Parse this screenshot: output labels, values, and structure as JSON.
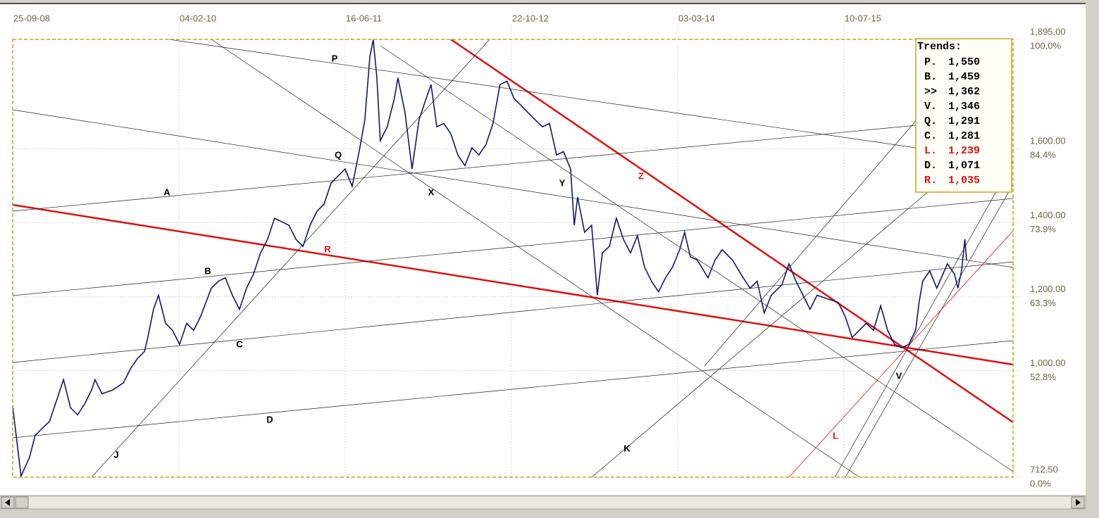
{
  "chart_data": {
    "type": "line",
    "xlim": [
      0,
      2991
    ],
    "xticks": [
      {
        "value": 0,
        "label": "25-09-08"
      },
      {
        "value": 497,
        "label": "04-02-10"
      },
      {
        "value": 994,
        "label": "16-06-11"
      },
      {
        "value": 1491,
        "label": "22-10-12"
      },
      {
        "value": 1988,
        "label": "03-03-14"
      },
      {
        "value": 2485,
        "label": "10-07-15"
      }
    ],
    "ylim": [
      712.5,
      1895
    ],
    "yticks": [
      {
        "value": 1895,
        "label": "1,895.00"
      },
      {
        "value": 1600,
        "label": "1,600.00"
      },
      {
        "value": 1400,
        "label": "1,400.00"
      },
      {
        "value": 1200,
        "label": "1,200.00"
      },
      {
        "value": 1000,
        "label": "1,000.00"
      },
      {
        "value": 712.5,
        "label": "712.50"
      }
    ],
    "ytick_percents": [
      "100.0%",
      "84.4%",
      "73.9%",
      "63.3%",
      "52.8%",
      "0.0%"
    ],
    "grid": true,
    "x": [
      0,
      25,
      51,
      67,
      88,
      110,
      131,
      152,
      173,
      194,
      215,
      236,
      246,
      267,
      299,
      331,
      352,
      373,
      394,
      404,
      421,
      436,
      457,
      478,
      499,
      520,
      541,
      562,
      594,
      615,
      636,
      657,
      678,
      699,
      720,
      741,
      762,
      783,
      804,
      826,
      847,
      868,
      889,
      910,
      931,
      952,
      973,
      994,
      1015,
      1036,
      1053,
      1068,
      1078,
      1089,
      1099,
      1120,
      1141,
      1152,
      1173,
      1194,
      1215,
      1236,
      1251,
      1268,
      1289,
      1310,
      1331,
      1352,
      1373,
      1394,
      1415,
      1436,
      1457,
      1478,
      1499,
      1521,
      1552,
      1584,
      1605,
      1626,
      1647,
      1668,
      1679,
      1689,
      1710,
      1731,
      1748,
      1763,
      1784,
      1805,
      1826,
      1847,
      1868,
      1889,
      1910,
      1931,
      1952,
      1973,
      1994,
      2009,
      2026,
      2047,
      2079,
      2100,
      2121,
      2152,
      2184,
      2205,
      2226,
      2247,
      2268,
      2300,
      2321,
      2342,
      2363,
      2384,
      2405,
      2437,
      2468,
      2489,
      2510,
      2531,
      2552,
      2574,
      2595,
      2616,
      2637,
      2658,
      2679,
      2700,
      2710,
      2721,
      2742,
      2763,
      2795,
      2816,
      2826,
      2837,
      2847,
      2852
    ],
    "series": [
      {
        "color": "#14146e",
        "values": [
          904,
          715,
          768,
          825,
          844,
          863,
          919,
          976,
          900,
          881,
          910,
          948,
          976,
          938,
          948,
          967,
          1005,
          1033,
          1052,
          1090,
          1166,
          1204,
          1128,
          1109,
          1071,
          1128,
          1109,
          1147,
          1223,
          1242,
          1251,
          1204,
          1166,
          1223,
          1261,
          1318,
          1355,
          1412,
          1403,
          1393,
          1355,
          1336,
          1393,
          1431,
          1450,
          1507,
          1526,
          1545,
          1498,
          1592,
          1678,
          1848,
          1894,
          1791,
          1621,
          1659,
          1735,
          1791,
          1697,
          1545,
          1678,
          1735,
          1773,
          1659,
          1668,
          1640,
          1583,
          1554,
          1602,
          1583,
          1611,
          1668,
          1773,
          1782,
          1735,
          1716,
          1687,
          1659,
          1668,
          1583,
          1592,
          1545,
          1393,
          1469,
          1374,
          1393,
          1204,
          1318,
          1336,
          1412,
          1355,
          1318,
          1365,
          1280,
          1242,
          1213,
          1251,
          1280,
          1327,
          1374,
          1308,
          1299,
          1251,
          1299,
          1327,
          1299,
          1251,
          1223,
          1242,
          1156,
          1204,
          1232,
          1289,
          1242,
          1204,
          1166,
          1204,
          1194,
          1185,
          1147,
          1090,
          1109,
          1128,
          1109,
          1175,
          1109,
          1071,
          1062,
          1071,
          1109,
          1185,
          1242,
          1270,
          1223,
          1289,
          1261,
          1223,
          1270,
          1355,
          1299
        ]
      }
    ],
    "annotations": [
      {
        "text": "P",
        "color": "#000000"
      },
      {
        "text": "Q",
        "color": "#000000"
      },
      {
        "text": "A",
        "color": "#000000"
      },
      {
        "text": "B",
        "color": "#000000"
      },
      {
        "text": "C",
        "color": "#000000"
      },
      {
        "text": "D",
        "color": "#000000"
      },
      {
        "text": "J",
        "color": "#000000"
      },
      {
        "text": "X",
        "color": "#000000"
      },
      {
        "text": "Y",
        "color": "#000000"
      },
      {
        "text": "Z",
        "color": "#dd1111"
      },
      {
        "text": "R",
        "color": "#dd1111"
      },
      {
        "text": "K",
        "color": "#000000"
      },
      {
        "text": "L",
        "color": "#dd1111"
      },
      {
        "text": "V",
        "color": "#000000"
      }
    ],
    "trends": {
      "title": "Trends:",
      "items": [
        {
          "label": "P.",
          "value": "1,550",
          "color": "#000000"
        },
        {
          "label": "B.",
          "value": "1,459",
          "color": "#000000"
        },
        {
          "label": ">>",
          "value": "1,362",
          "color": "#000000"
        },
        {
          "label": "V.",
          "value": "1,346",
          "color": "#000000"
        },
        {
          "label": "Q.",
          "value": "1,291",
          "color": "#000000"
        },
        {
          "label": "C.",
          "value": "1,281",
          "color": "#000000"
        },
        {
          "label": "L.",
          "value": "1,239",
          "color": "#dd1111"
        },
        {
          "label": "D.",
          "value": "1,071",
          "color": "#000000"
        },
        {
          "label": "R.",
          "value": "1,035",
          "color": "#dd1111"
        }
      ]
    }
  }
}
